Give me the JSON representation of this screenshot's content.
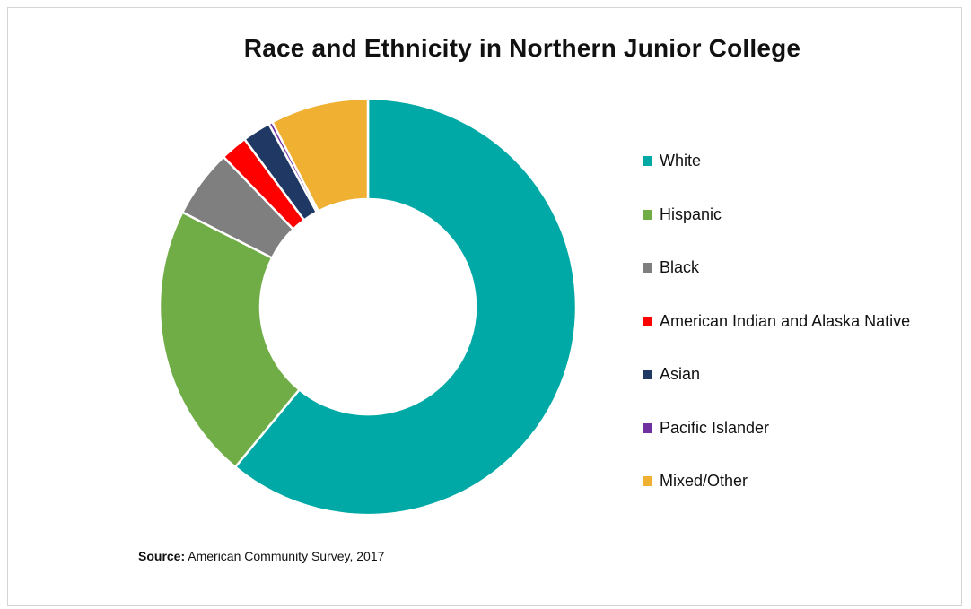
{
  "chart_data": {
    "type": "pie",
    "variant": "donut",
    "title": "Race and Ethnicity in Northern Junior College",
    "categories": [
      "White",
      "Hispanic",
      "Black",
      "American Indian and Alaska Native",
      "Asian",
      "Pacific Islander",
      "Mixed/Other"
    ],
    "values": [
      61.0,
      21.5,
      5.3,
      2.1,
      2.2,
      0.3,
      7.6
    ],
    "colors": [
      "#00a9a5",
      "#70ad47",
      "#7f7f7f",
      "#ff0000",
      "#1f3864",
      "#7030a0",
      "#f0b032"
    ],
    "legend_position": "right"
  },
  "source": {
    "label": "Source:",
    "text": "American Community Survey, 2017"
  }
}
